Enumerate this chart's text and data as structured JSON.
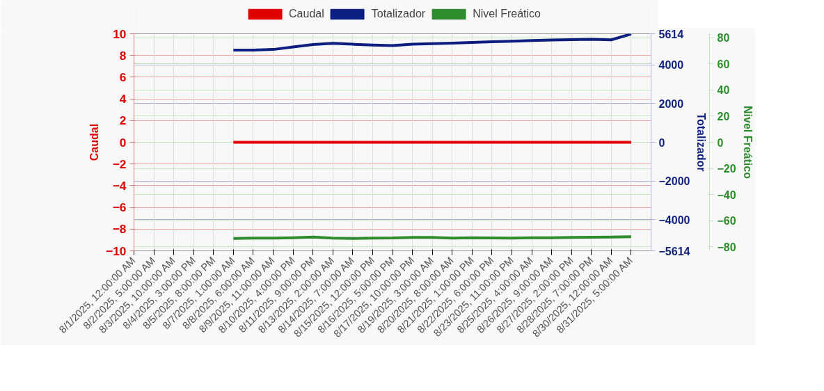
{
  "chart_data": {
    "type": "line",
    "categories": [
      "8/1/2025, 12:00:00 AM",
      "8/2/2025, 5:00:00 AM",
      "8/3/2025, 10:00:00 AM",
      "8/4/2025, 3:00:00 PM",
      "8/5/2025, 8:00:00 PM",
      "8/7/2025, 1:00:00 AM",
      "8/8/2025, 6:00:00 AM",
      "8/9/2025, 11:00:00 AM",
      "8/10/2025, 4:00:00 PM",
      "8/11/2025, 9:00:00 PM",
      "8/13/2025, 2:00:00 AM",
      "8/14/2025, 7:00:00 AM",
      "8/15/2025, 12:00:00 PM",
      "8/16/2025, 5:00:00 PM",
      "8/17/2025, 10:00:00 PM",
      "8/19/2025, 3:00:00 AM",
      "8/20/2025, 8:00:00 AM",
      "8/21/2025, 1:00:00 PM",
      "8/22/2025, 6:00:00 PM",
      "8/23/2025, 11:00:00 PM",
      "8/25/2025, 4:00:00 AM",
      "8/26/2025, 9:00:00 AM",
      "8/27/2025, 2:00:00 PM",
      "8/28/2025, 7:00:00 PM",
      "8/30/2025, 12:00:00 AM",
      "8/31/2025, 5:00:00 AM",
      null
    ],
    "series": [
      {
        "name": "Caudal",
        "color": "#e00000",
        "axis": "y",
        "values": [
          null,
          null,
          null,
          null,
          null,
          0,
          0,
          0,
          0,
          0,
          0,
          0,
          0,
          0,
          0,
          0,
          0,
          0,
          0,
          0,
          0,
          0,
          0,
          0,
          0,
          0,
          null
        ]
      },
      {
        "name": "Totalizador",
        "color": "#0c1f80",
        "axis": "y2",
        "values": [
          null,
          null,
          null,
          null,
          null,
          4770,
          4770,
          4800,
          4930,
          5060,
          5120,
          5070,
          5030,
          5000,
          5070,
          5100,
          5130,
          5160,
          5200,
          5230,
          5260,
          5290,
          5310,
          5330,
          5300,
          5600,
          null
        ]
      },
      {
        "name": "Nivel Freático",
        "color": "#2e8b2e",
        "axis": "y3",
        "values": [
          null,
          null,
          null,
          null,
          null,
          -73.5,
          -73.3,
          -73.3,
          -73,
          -72.5,
          -73.3,
          -73.5,
          -73.3,
          -73.2,
          -72.7,
          -72.8,
          -73.3,
          -73,
          -73.2,
          -73.3,
          -73,
          -73,
          -72.8,
          -72.6,
          -72.5,
          -72.2,
          null
        ]
      }
    ],
    "ylabel": "Caudal",
    "y2label": "Totalizador",
    "y3label": "Nivel Freático",
    "ylim": [
      -10,
      10
    ],
    "yticks": [
      -10,
      -8,
      -6,
      -4,
      -2,
      0,
      2,
      4,
      6,
      8,
      10
    ],
    "y2lim": [
      -5614,
      5614
    ],
    "y2ticks": [
      -5614,
      -4000,
      -2000,
      0,
      2000,
      4000,
      5614
    ],
    "y3lim": [
      -83,
      83
    ],
    "y3ticks": [
      -80,
      -60,
      -40,
      -20,
      0,
      20,
      40,
      60,
      80
    ],
    "grid": true,
    "legend": "top",
    "marker": "none",
    "line_style": "solid"
  }
}
